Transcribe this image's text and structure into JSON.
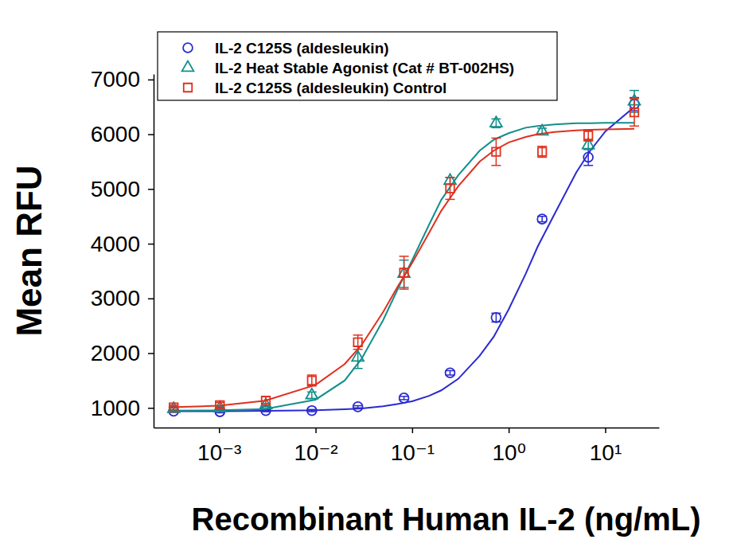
{
  "chart_data": {
    "type": "scatter",
    "x_label": "Recombinant Human IL-2 (ng/mL)",
    "y_label": "Mean RFU",
    "log": "x",
    "legend": "upper left",
    "grid": false,
    "xlim": [
      0.00021,
      36
    ],
    "xticks": [
      {
        "value": 0.001,
        "label": "10⁻³"
      },
      {
        "value": 0.01,
        "label": "10⁻²"
      },
      {
        "value": 0.1,
        "label": "10⁻¹"
      },
      {
        "value": 1,
        "label": "10⁰"
      },
      {
        "value": 10,
        "label": "10¹"
      }
    ],
    "ylim": [
      640,
      7100
    ],
    "yticks": [
      1000,
      2000,
      3000,
      4000,
      5000,
      6000,
      7000
    ],
    "x": [
      0.000339,
      0.00102,
      0.00305,
      0.00914,
      0.0274,
      0.0823,
      0.247,
      0.741,
      2.22,
      6.67,
      20
    ],
    "series": [
      {
        "name": "IL-2 C125S (aldesleukin)",
        "color": "#2a2ad0",
        "marker": "circle",
        "values": [
          940,
          930,
          950,
          950,
          1020,
          1180,
          1640,
          2650,
          4450,
          5580,
          6550
        ],
        "errors": [
          20,
          20,
          20,
          20,
          20,
          30,
          40,
          80,
          50,
          150,
          120
        ],
        "fit": {
          "x": [
            0.0003,
            0.001,
            0.003,
            0.01,
            0.02,
            0.03,
            0.05,
            0.07,
            0.1,
            0.15,
            0.2,
            0.3,
            0.5,
            0.7,
            1,
            1.5,
            2,
            3,
            5,
            7,
            10,
            20
          ],
          "values": [
            940,
            940,
            945,
            955,
            975,
            990,
            1030,
            1070,
            1120,
            1220,
            1320,
            1530,
            1950,
            2300,
            2800,
            3450,
            3950,
            4550,
            5300,
            5700,
            6050,
            6500
          ]
        }
      },
      {
        "name": "IL-2 Heat Stable Agonist (Cat # BT-002HS)",
        "color": "#138f8a",
        "marker": "triangle",
        "values": [
          980,
          1000,
          1050,
          1230,
          1920,
          3450,
          5150,
          6200,
          6050,
          5800,
          6600
        ],
        "errors": [
          20,
          20,
          30,
          60,
          200,
          250,
          60,
          80,
          60,
          80,
          200
        ],
        "fit": {
          "x": [
            0.0003,
            0.001,
            0.003,
            0.01,
            0.02,
            0.03,
            0.05,
            0.07,
            0.1,
            0.15,
            0.2,
            0.3,
            0.5,
            0.7,
            1,
            1.5,
            2,
            3,
            5,
            7,
            10,
            20
          ],
          "values": [
            950,
            955,
            980,
            1150,
            1500,
            1900,
            2600,
            3150,
            3700,
            4350,
            4800,
            5250,
            5700,
            5900,
            6020,
            6120,
            6150,
            6180,
            6200,
            6200,
            6210,
            6210
          ]
        }
      },
      {
        "name": "IL-2 C125S (aldesleukin) Control",
        "color": "#e0301e",
        "marker": "square",
        "values": [
          1010,
          1050,
          1130,
          1500,
          2200,
          3470,
          5010,
          5680,
          5680,
          5980,
          6400
        ],
        "errors": [
          40,
          50,
          80,
          100,
          130,
          300,
          200,
          250,
          100,
          100,
          250
        ],
        "fit": {
          "x": [
            0.0003,
            0.001,
            0.003,
            0.01,
            0.02,
            0.03,
            0.05,
            0.07,
            0.1,
            0.15,
            0.2,
            0.3,
            0.5,
            0.7,
            1,
            1.5,
            2,
            3,
            5,
            7,
            10,
            20
          ],
          "values": [
            1010,
            1040,
            1130,
            1420,
            1800,
            2150,
            2750,
            3200,
            3650,
            4200,
            4600,
            5050,
            5500,
            5700,
            5850,
            5950,
            6000,
            6040,
            6070,
            6080,
            6090,
            6100
          ]
        }
      }
    ]
  }
}
